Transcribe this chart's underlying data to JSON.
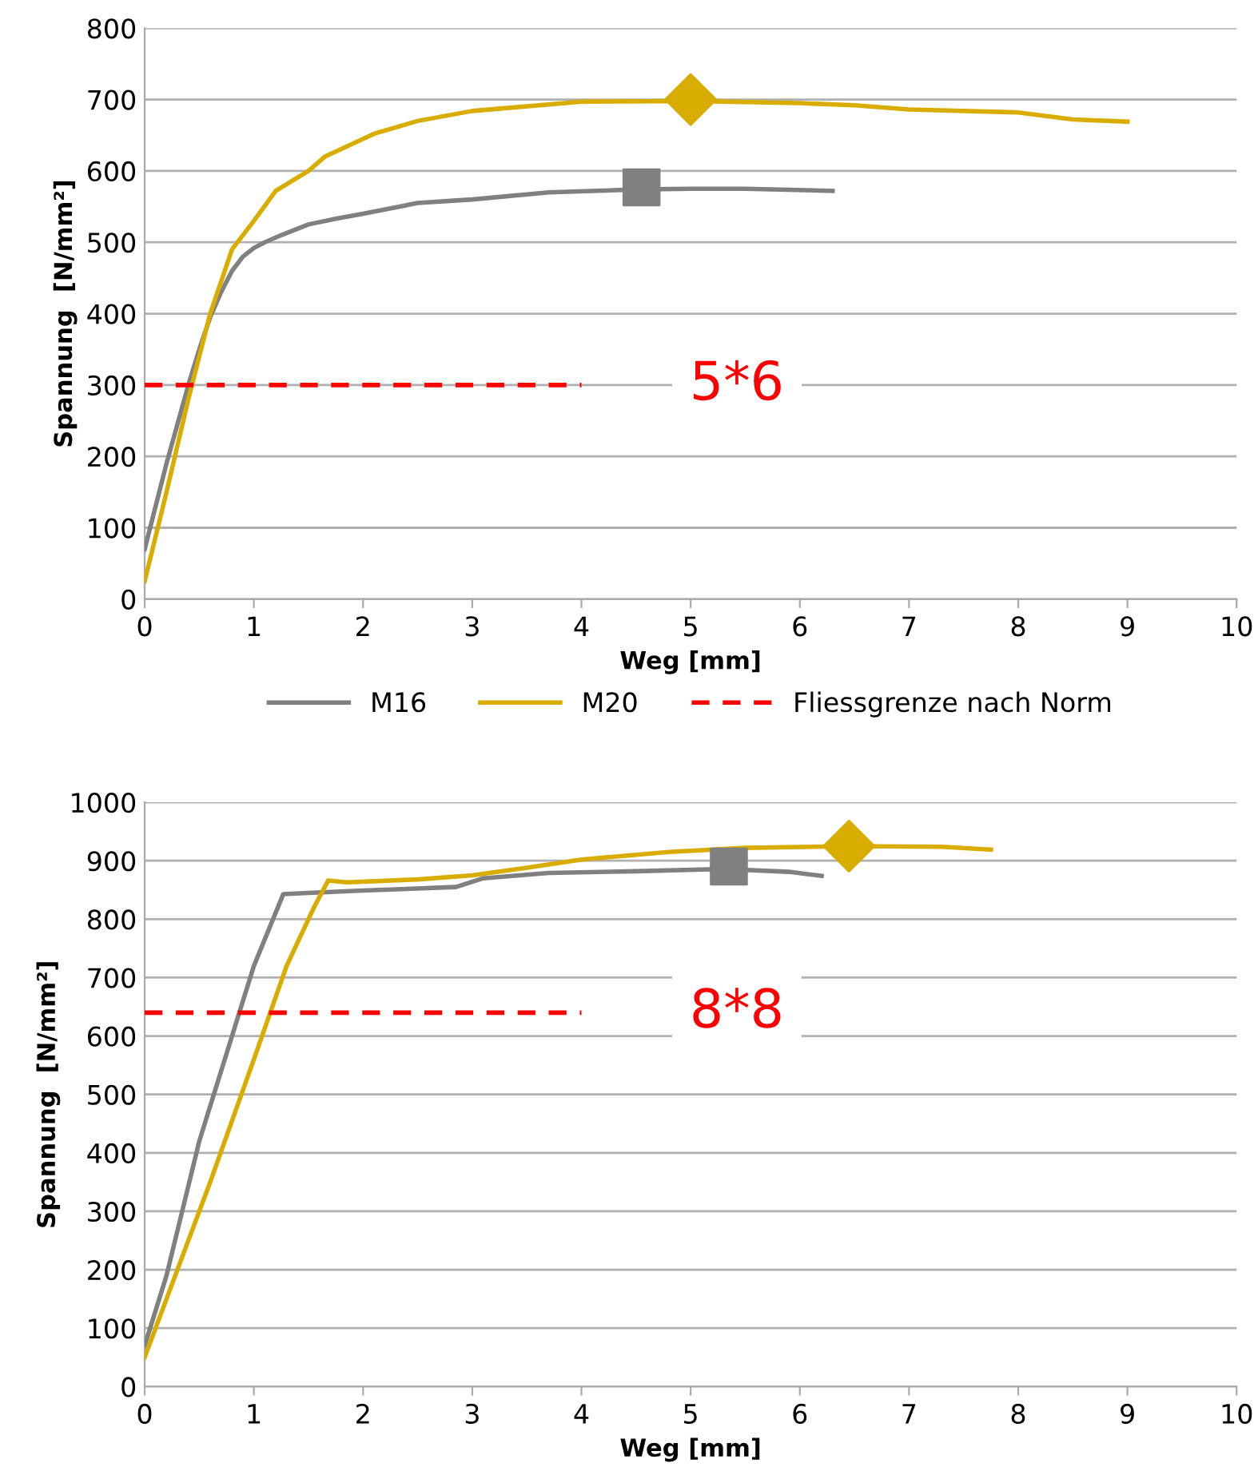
{
  "chart_data": [
    {
      "type": "line",
      "xlabel": "Weg [mm]",
      "ylabel": "Spannung  [N/mm²]",
      "xlim": [
        0,
        10
      ],
      "ylim": [
        0,
        800
      ],
      "xticks": [
        0,
        1,
        2,
        3,
        4,
        5,
        6,
        7,
        8,
        9,
        10
      ],
      "yticks": [
        0,
        100,
        200,
        300,
        400,
        500,
        600,
        700,
        800
      ],
      "grid": "y",
      "legend": "bottom",
      "series": [
        {
          "name": "M16",
          "color": "#808080",
          "x": [
            0,
            0.1,
            0.2,
            0.3,
            0.4,
            0.5,
            0.6,
            0.7,
            0.8,
            0.9,
            1.0,
            1.1,
            1.25,
            1.5,
            1.75,
            2.0,
            2.5,
            3.0,
            3.7,
            4.5,
            5.0,
            5.5,
            6.3
          ],
          "values": [
            70,
            130,
            190,
            245,
            300,
            350,
            395,
            430,
            460,
            480,
            492,
            500,
            510,
            525,
            533,
            540,
            555,
            560,
            570,
            574,
            575,
            575,
            572
          ]
        },
        {
          "type": "scatter",
          "marker": "square",
          "color": "#808080",
          "x": [
            4.55
          ],
          "values": [
            577
          ]
        },
        {
          "name": "M20",
          "color": "#d9ad00",
          "x": [
            0,
            0.2,
            0.4,
            0.6,
            0.8,
            1.0,
            1.2,
            1.5,
            1.65,
            2.1,
            2.5,
            3.0,
            4.0,
            5.0,
            6.0,
            6.5,
            7.0,
            8.0,
            8.5,
            9.0
          ],
          "values": [
            25,
            150,
            280,
            400,
            490,
            530,
            572,
            600,
            620,
            652,
            670,
            684,
            697,
            698,
            695,
            692,
            686,
            682,
            672,
            669
          ]
        },
        {
          "type": "scatter",
          "marker": "diamond",
          "color": "#d9ad00",
          "x": [
            5.0
          ],
          "values": [
            700
          ]
        },
        {
          "name": "Fliessgrenze nach Norm",
          "color": "#ff0000",
          "line_style": "dashed",
          "x": [
            0,
            4
          ],
          "values": [
            300,
            300
          ]
        }
      ],
      "annotations": [
        "5*6"
      ]
    },
    {
      "type": "line",
      "xlabel": "Weg [mm]",
      "ylabel": "Spannung  [N/mm²]",
      "xlim": [
        0,
        10
      ],
      "ylim": [
        0,
        1000
      ],
      "xticks": [
        0,
        1,
        2,
        3,
        4,
        5,
        6,
        7,
        8,
        9,
        10
      ],
      "yticks": [
        0,
        100,
        200,
        300,
        400,
        500,
        600,
        700,
        800,
        900,
        1000
      ],
      "grid": "y",
      "series": [
        {
          "color": "#808080",
          "x": [
            0,
            0.2,
            0.5,
            0.8,
            1.0,
            1.27,
            1.5,
            2.0,
            2.85,
            3.1,
            3.7,
            4.5,
            5.3,
            5.9,
            6.2
          ],
          "values": [
            70,
            190,
            420,
            600,
            720,
            843,
            845,
            849,
            855,
            870,
            879,
            882,
            886,
            881,
            874
          ]
        },
        {
          "type": "scatter",
          "marker": "square",
          "color": "#808080",
          "x": [
            5.35
          ],
          "values": [
            890
          ]
        },
        {
          "color": "#d9ad00",
          "x": [
            0,
            0.3,
            0.6,
            1.0,
            1.3,
            1.55,
            1.68,
            1.85,
            2.5,
            3.0,
            3.5,
            4.0,
            4.8,
            5.5,
            6.5,
            7.3,
            7.75
          ],
          "values": [
            50,
            200,
            350,
            560,
            720,
            820,
            866,
            863,
            868,
            875,
            888,
            902,
            915,
            922,
            925,
            924,
            919
          ]
        },
        {
          "type": "scatter",
          "marker": "diamond",
          "color": "#d9ad00",
          "x": [
            6.45
          ],
          "values": [
            925
          ]
        },
        {
          "color": "#ff0000",
          "line_style": "dashed",
          "x": [
            0,
            4
          ],
          "values": [
            640,
            640
          ]
        }
      ],
      "annotations": [
        "8*8"
      ]
    }
  ]
}
